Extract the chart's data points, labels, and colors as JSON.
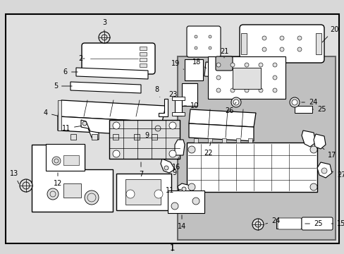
{
  "bg_color": "#d8d8d8",
  "outer_box_color": "#000000",
  "inner_box_color": "#888888",
  "white": "#ffffff",
  "light_gray": "#e0e0e0",
  "mid_gray": "#c0c0c0",
  "dark_line": "#000000",
  "figsize": [
    4.89,
    3.6
  ],
  "dpi": 100,
  "label_fontsize": 7.0,
  "bottom_label": "1"
}
